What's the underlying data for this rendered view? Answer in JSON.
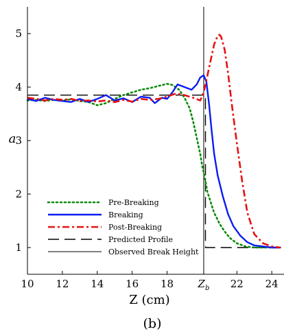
{
  "chart_data": {
    "type": "line",
    "xlabel": "Z (cm)",
    "ylabel": "a",
    "caption": "(b)",
    "xlim": [
      10,
      24.7
    ],
    "ylim": [
      0.5,
      5.5
    ],
    "x_ticks": [
      {
        "value": 10,
        "label": "10"
      },
      {
        "value": 12,
        "label": "12"
      },
      {
        "value": 14,
        "label": "14"
      },
      {
        "value": 16,
        "label": "16"
      },
      {
        "value": 18,
        "label": "18"
      },
      {
        "value": 20.1,
        "label": "Z_b"
      },
      {
        "value": 22,
        "label": "22"
      },
      {
        "value": 24,
        "label": "24"
      }
    ],
    "y_ticks": [
      {
        "value": 1,
        "label": "1"
      },
      {
        "value": 2,
        "label": "2"
      },
      {
        "value": 3,
        "label": "3"
      },
      {
        "value": 4,
        "label": "4"
      },
      {
        "value": 5,
        "label": "5"
      }
    ],
    "vline": {
      "x": 20.1,
      "name": "Observed Break Height"
    },
    "legend_position": "lower-left",
    "series": [
      {
        "name": "Pre-Breaking",
        "color": "#0a8a0a",
        "style": "dotted",
        "x": [
          10,
          10.5,
          11,
          11.5,
          12,
          12.5,
          13,
          13.5,
          14,
          14.5,
          15,
          15.5,
          16,
          16.5,
          17,
          17.5,
          18,
          18.3,
          18.7,
          19,
          19.3,
          19.5,
          19.7,
          19.9,
          20.0,
          20.1,
          20.2,
          20.3,
          20.5,
          20.7,
          21.0,
          21.3,
          21.6,
          22.0,
          22.5,
          23.0,
          23.5,
          24.0,
          24.5
        ],
        "y": [
          3.75,
          3.76,
          3.74,
          3.76,
          3.75,
          3.77,
          3.74,
          3.72,
          3.66,
          3.7,
          3.78,
          3.85,
          3.9,
          3.95,
          3.98,
          4.02,
          4.06,
          4.04,
          3.95,
          3.8,
          3.6,
          3.35,
          3.05,
          2.75,
          2.55,
          2.4,
          2.25,
          2.05,
          1.85,
          1.65,
          1.45,
          1.3,
          1.18,
          1.08,
          1.02,
          1.0,
          1.0,
          1.0,
          1.0
        ]
      },
      {
        "name": "Breaking",
        "color": "#0a1cf0",
        "style": "solid",
        "x": [
          10,
          10.5,
          11,
          11.5,
          12,
          12.5,
          13,
          13.5,
          14,
          14.5,
          15,
          15.5,
          16,
          16.5,
          17,
          17.3,
          17.7,
          18,
          18.3,
          18.6,
          19,
          19.4,
          19.7,
          19.9,
          20.1,
          20.25,
          20.4,
          20.55,
          20.7,
          20.9,
          21.2,
          21.5,
          21.8,
          22.2,
          22.6,
          23.0,
          23.5,
          24.0,
          24.5
        ],
        "y": [
          3.78,
          3.74,
          3.8,
          3.76,
          3.74,
          3.72,
          3.78,
          3.72,
          3.78,
          3.85,
          3.75,
          3.79,
          3.72,
          3.82,
          3.8,
          3.7,
          3.8,
          3.78,
          3.9,
          4.05,
          4.0,
          3.95,
          4.05,
          4.18,
          4.22,
          4.1,
          3.7,
          3.2,
          2.75,
          2.35,
          1.95,
          1.62,
          1.4,
          1.22,
          1.1,
          1.04,
          1.02,
          1.0,
          1.0
        ]
      },
      {
        "name": "Post-Breaking",
        "color": "#e81010",
        "style": "dashdot",
        "x": [
          10,
          10.5,
          11,
          11.5,
          12,
          12.5,
          13,
          13.5,
          14,
          14.5,
          15,
          15.5,
          16,
          16.5,
          17,
          17.5,
          18,
          18.5,
          19,
          19.5,
          19.9,
          20.1,
          20.3,
          20.5,
          20.7,
          20.9,
          21.0,
          21.1,
          21.3,
          21.5,
          21.7,
          22.0,
          22.3,
          22.6,
          23.0,
          23.5,
          24.0,
          24.5
        ],
        "y": [
          3.8,
          3.78,
          3.75,
          3.78,
          3.76,
          3.78,
          3.74,
          3.75,
          3.73,
          3.75,
          3.72,
          3.76,
          3.73,
          3.78,
          3.76,
          3.78,
          3.82,
          3.88,
          3.85,
          3.8,
          3.75,
          3.9,
          4.2,
          4.5,
          4.8,
          4.96,
          4.98,
          4.94,
          4.7,
          4.25,
          3.7,
          2.95,
          2.25,
          1.65,
          1.25,
          1.08,
          1.02,
          1.0
        ]
      },
      {
        "name": "Predicted Profile",
        "color": "#000000",
        "style": "longdash",
        "x": [
          10,
          18.8,
          19.95,
          20.2,
          20.2,
          20.3,
          24.7
        ],
        "y": [
          3.85,
          3.85,
          3.85,
          3.85,
          1.0,
          1.0,
          1.0
        ]
      }
    ],
    "legend": [
      {
        "label": "Pre-Breaking",
        "color": "#0a8a0a",
        "style": "dotted"
      },
      {
        "label": "Breaking",
        "color": "#0a1cf0",
        "style": "solid"
      },
      {
        "label": "Post-Breaking",
        "color": "#e81010",
        "style": "dashdot"
      },
      {
        "label": "Predicted Profile",
        "color": "#000000",
        "style": "longdash"
      },
      {
        "label": "Observed Break Height",
        "color": "#000000",
        "style": "thin"
      }
    ]
  }
}
